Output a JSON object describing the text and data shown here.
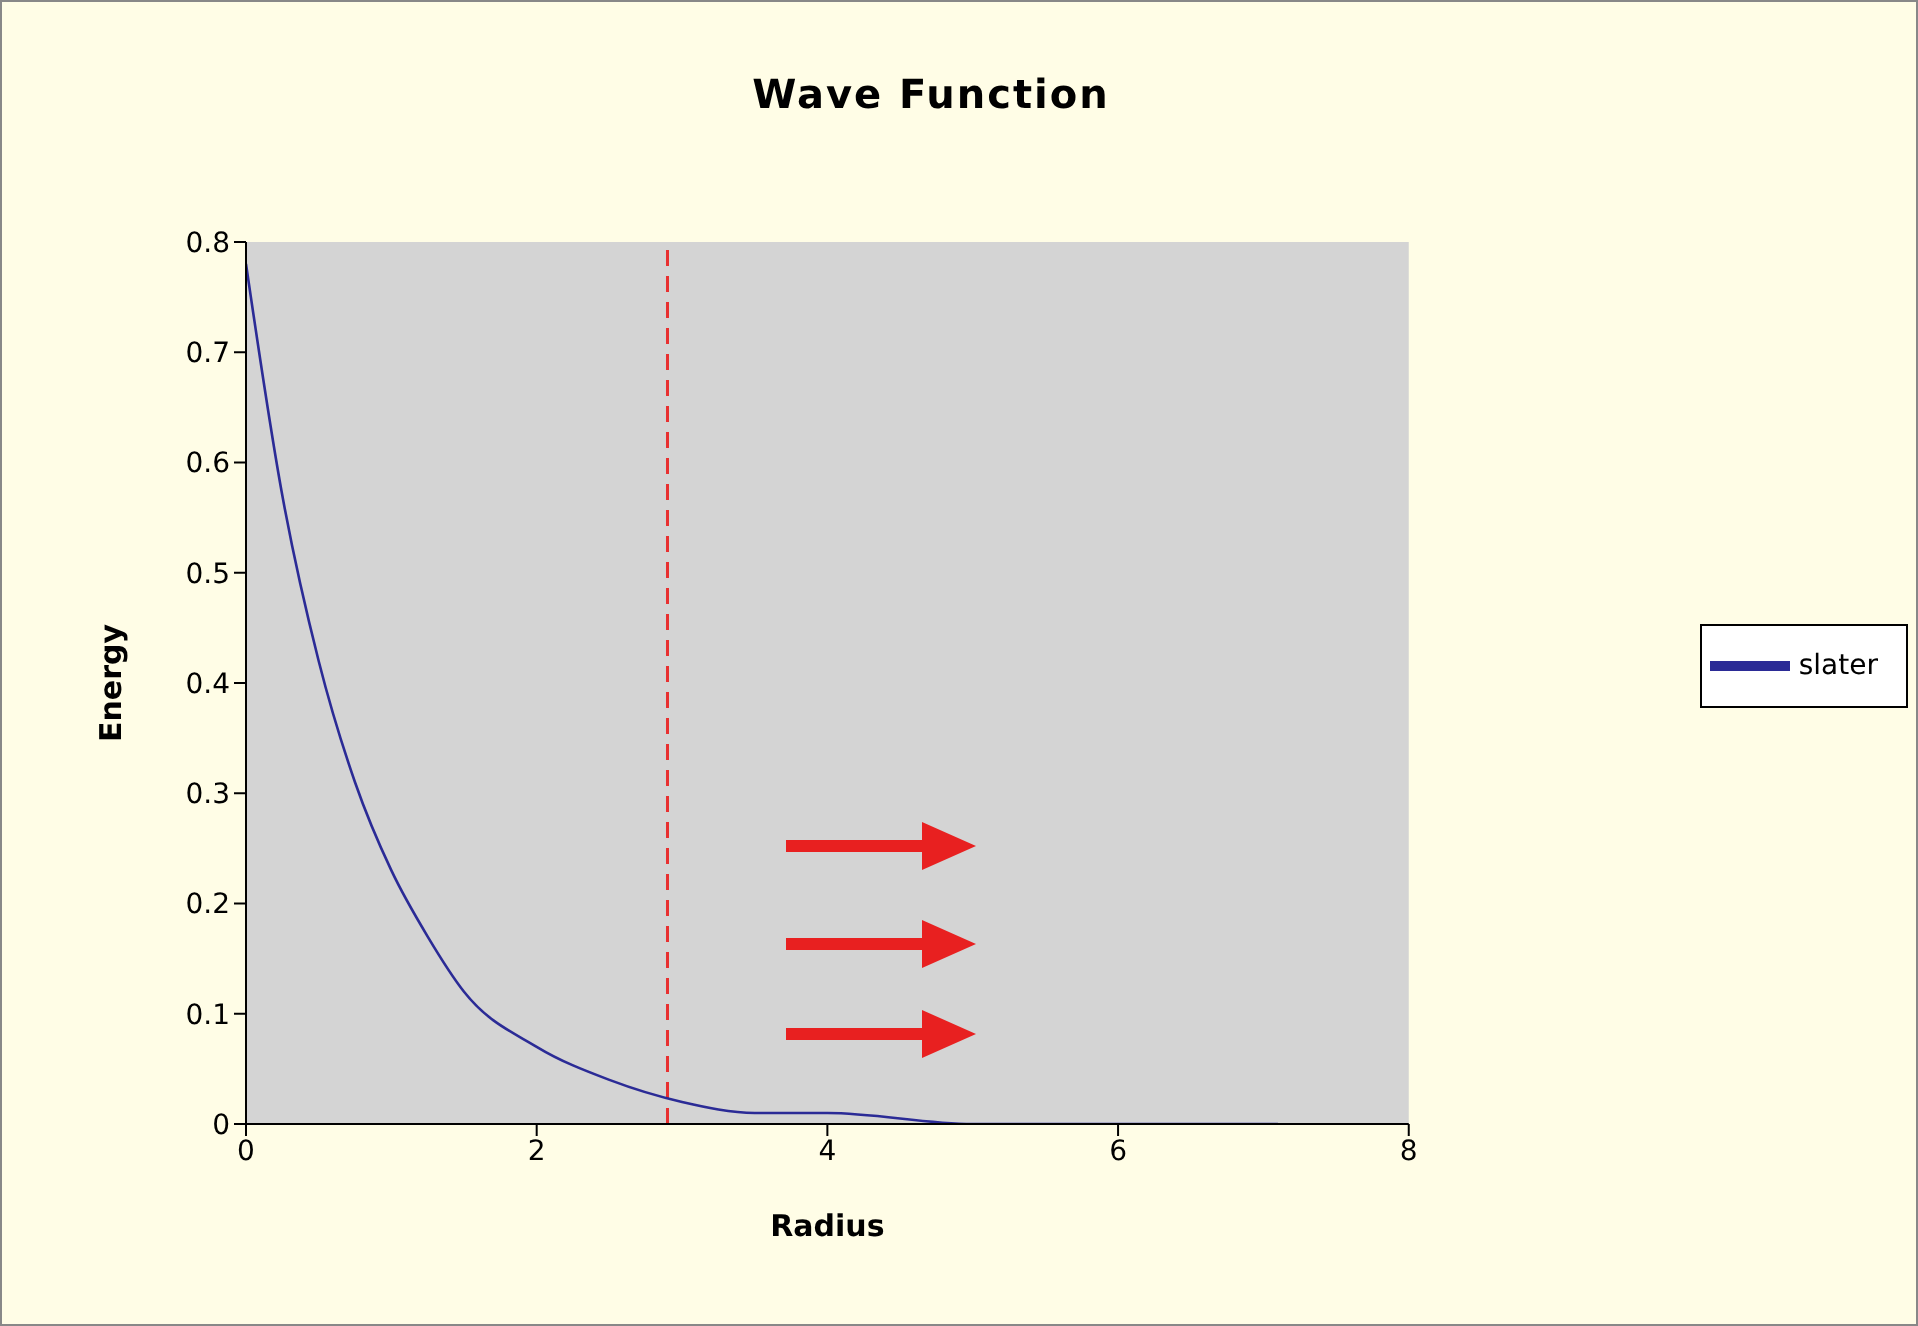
{
  "chart_data": {
    "type": "line",
    "title": "Wave Function",
    "xlabel": "Radius",
    "ylabel": "Energy",
    "x": [
      0,
      0.25,
      0.5,
      0.75,
      1,
      1.25,
      1.5,
      2,
      2.5,
      3,
      3.5,
      4,
      5,
      6,
      7.1
    ],
    "series": [
      {
        "name": "slater",
        "color": "#2b2b96",
        "values": [
          0.78,
          0.57,
          0.42,
          0.31,
          0.23,
          0.17,
          0.12,
          0.07,
          0.04,
          0.02,
          0.01,
          0.01,
          0,
          0,
          0
        ]
      }
    ],
    "xlim": [
      0,
      8
    ],
    "xticks": [
      0,
      2,
      4,
      6,
      8
    ],
    "ylim": [
      0,
      0.8
    ],
    "yticks": [
      0,
      0.1,
      0.2,
      0.3,
      0.4,
      0.5,
      0.6,
      0.7,
      0.8
    ],
    "ref_lines": [
      {
        "axis": "x",
        "value": 2.9,
        "color": "#e83030",
        "line_style": "dashed"
      }
    ],
    "grid": false,
    "legend": "right",
    "marker": "none",
    "line_style": "solid"
  }
}
